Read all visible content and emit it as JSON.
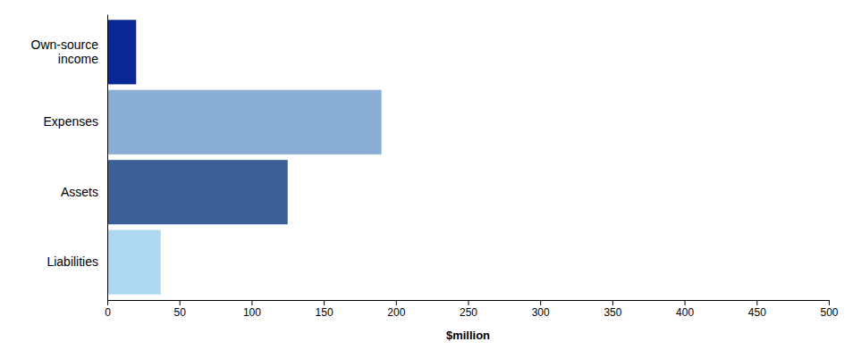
{
  "chart_data": {
    "type": "bar",
    "orientation": "horizontal",
    "categories": [
      "Own-source\nincome",
      "Expenses",
      "Assets",
      "Liabilities"
    ],
    "values": [
      20,
      190,
      125,
      37
    ],
    "colors": [
      "#0a2796",
      "#8bafd4",
      "#3b5f96",
      "#add8f0"
    ],
    "xlabel": "$million",
    "xlim": [
      0,
      500
    ],
    "xticks": [
      0,
      50,
      100,
      150,
      200,
      250,
      300,
      350,
      400,
      450,
      500
    ],
    "grid": false
  }
}
